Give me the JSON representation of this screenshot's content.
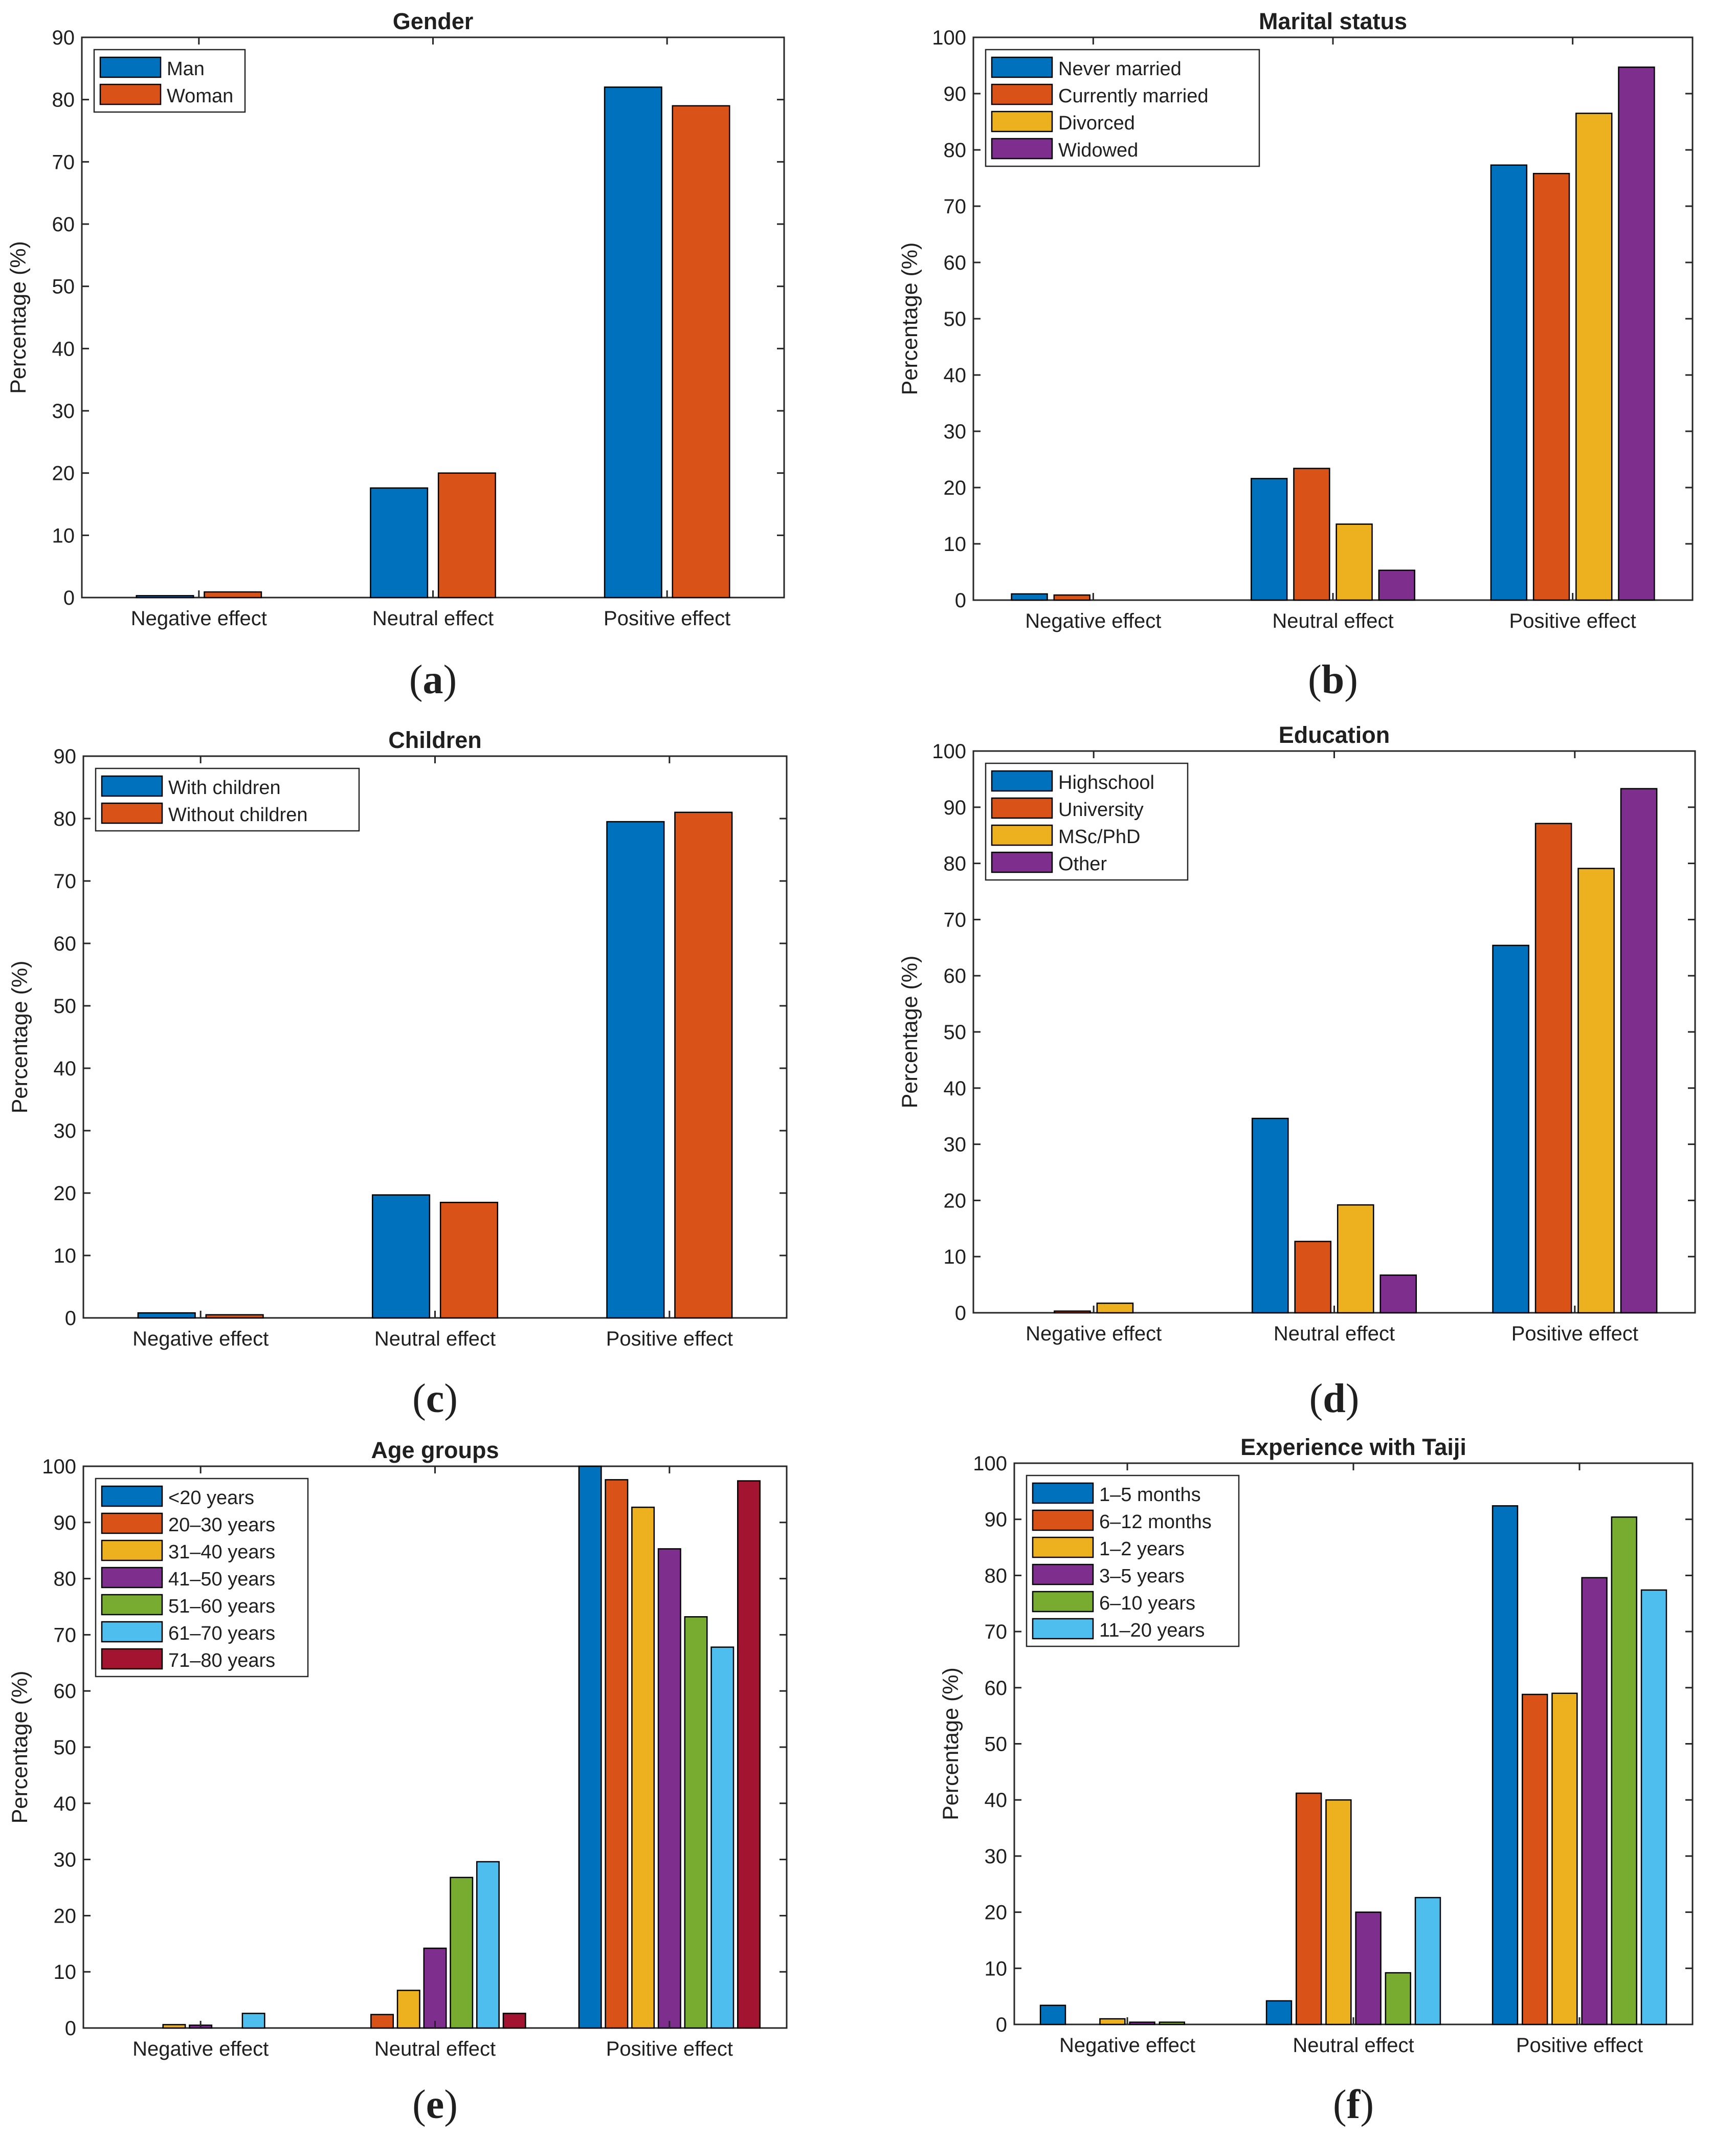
{
  "chart_data": [
    {
      "id": "a",
      "type": "bar",
      "title": "Gender",
      "caption": "a",
      "ylabel": "Percentage (%)",
      "ylim": [
        0,
        90
      ],
      "yticks": [
        0,
        10,
        20,
        30,
        40,
        50,
        60,
        70,
        80,
        90
      ],
      "categories": [
        "Negative effect",
        "Neutral effect",
        "Positive effect"
      ],
      "series": [
        {
          "name": "Man",
          "color": "#0072BD",
          "values": [
            0.3,
            17.6,
            82.0
          ]
        },
        {
          "name": "Woman",
          "color": "#D95319",
          "values": [
            0.9,
            20.0,
            79.0
          ]
        }
      ],
      "legend": "top-left"
    },
    {
      "id": "b",
      "type": "bar",
      "title": "Marital status",
      "caption": "b",
      "ylabel": "Percentage (%)",
      "ylim": [
        0,
        100
      ],
      "yticks": [
        0,
        10,
        20,
        30,
        40,
        50,
        60,
        70,
        80,
        90,
        100
      ],
      "categories": [
        "Negative effect",
        "Neutral effect",
        "Positive effect"
      ],
      "series": [
        {
          "name": "Never married",
          "color": "#0072BD",
          "values": [
            1.1,
            21.6,
            77.3
          ]
        },
        {
          "name": "Currently married",
          "color": "#D95319",
          "values": [
            0.9,
            23.4,
            75.8
          ]
        },
        {
          "name": "Divorced",
          "color": "#EDB120",
          "values": [
            0,
            13.5,
            86.5
          ]
        },
        {
          "name": "Widowed",
          "color": "#7E2F8E",
          "values": [
            0,
            5.3,
            94.7
          ]
        }
      ],
      "legend": "top-left"
    },
    {
      "id": "c",
      "type": "bar",
      "title": "Children",
      "caption": "c",
      "ylabel": "Percentage (%)",
      "ylim": [
        0,
        90
      ],
      "yticks": [
        0,
        10,
        20,
        30,
        40,
        50,
        60,
        70,
        80,
        90
      ],
      "categories": [
        "Negative effect",
        "Neutral effect",
        "Positive effect"
      ],
      "series": [
        {
          "name": "With children",
          "color": "#0072BD",
          "values": [
            0.8,
            19.7,
            79.5
          ]
        },
        {
          "name": "Without children",
          "color": "#D95319",
          "values": [
            0.5,
            18.5,
            81.0
          ]
        }
      ],
      "legend": "top-left"
    },
    {
      "id": "d",
      "type": "bar",
      "title": "Education",
      "caption": "d",
      "ylabel": "Percentage (%)",
      "ylim": [
        0,
        100
      ],
      "yticks": [
        0,
        10,
        20,
        30,
        40,
        50,
        60,
        70,
        80,
        90,
        100
      ],
      "categories": [
        "Negative effect",
        "Neutral effect",
        "Positive effect"
      ],
      "series": [
        {
          "name": "Highschool",
          "color": "#0072BD",
          "values": [
            0,
            34.6,
            65.4
          ]
        },
        {
          "name": "University",
          "color": "#D95319",
          "values": [
            0.3,
            12.7,
            87.1
          ]
        },
        {
          "name": "MSc/PhD",
          "color": "#EDB120",
          "values": [
            1.7,
            19.2,
            79.1
          ]
        },
        {
          "name": "Other",
          "color": "#7E2F8E",
          "values": [
            0,
            6.7,
            93.3
          ]
        }
      ],
      "legend": "top-left"
    },
    {
      "id": "e",
      "type": "bar",
      "title": "Age groups",
      "caption": "e",
      "ylabel": "Percentage (%)",
      "ylim": [
        0,
        100
      ],
      "yticks": [
        0,
        10,
        20,
        30,
        40,
        50,
        60,
        70,
        80,
        90,
        100
      ],
      "categories": [
        "Negative effect",
        "Neutral effect",
        "Positive effect"
      ],
      "series": [
        {
          "name": "<20 years",
          "color": "#0072BD",
          "values": [
            0,
            0,
            100
          ]
        },
        {
          "name": "20–30 years",
          "color": "#D95319",
          "values": [
            0,
            2.4,
            97.6
          ]
        },
        {
          "name": "31–40 years",
          "color": "#EDB120",
          "values": [
            0.6,
            6.7,
            92.7
          ]
        },
        {
          "name": "41–50 years",
          "color": "#7E2F8E",
          "values": [
            0.5,
            14.2,
            85.3
          ]
        },
        {
          "name": "51–60 years",
          "color": "#77AC30",
          "values": [
            0,
            26.8,
            73.2
          ]
        },
        {
          "name": "61–70 years",
          "color": "#4DBEEE",
          "values": [
            2.6,
            29.6,
            67.8
          ]
        },
        {
          "name": "71–80 years",
          "color": "#A2142F",
          "values": [
            0,
            2.6,
            97.4
          ]
        }
      ],
      "legend": "top-left"
    },
    {
      "id": "f",
      "type": "bar",
      "title": "Experience with Taiji",
      "caption": "f",
      "ylabel": "Percentage (%)",
      "ylim": [
        0,
        100
      ],
      "yticks": [
        0,
        10,
        20,
        30,
        40,
        50,
        60,
        70,
        80,
        90,
        100
      ],
      "categories": [
        "Negative effect",
        "Neutral effect",
        "Positive effect"
      ],
      "series": [
        {
          "name": "1–5 months",
          "color": "#0072BD",
          "values": [
            3.4,
            4.2,
            92.4
          ]
        },
        {
          "name": "6–12 months",
          "color": "#D95319",
          "values": [
            0,
            41.2,
            58.8
          ]
        },
        {
          "name": "1–2 years",
          "color": "#EDB120",
          "values": [
            1.0,
            40.0,
            59.0
          ]
        },
        {
          "name": "3–5 years",
          "color": "#7E2F8E",
          "values": [
            0.4,
            20.0,
            79.6
          ]
        },
        {
          "name": "6–10 years",
          "color": "#77AC30",
          "values": [
            0.4,
            9.2,
            90.4
          ]
        },
        {
          "name": "11–20 years",
          "color": "#4DBEEE",
          "values": [
            0,
            22.6,
            77.4
          ]
        }
      ],
      "legend": "top-left"
    }
  ]
}
